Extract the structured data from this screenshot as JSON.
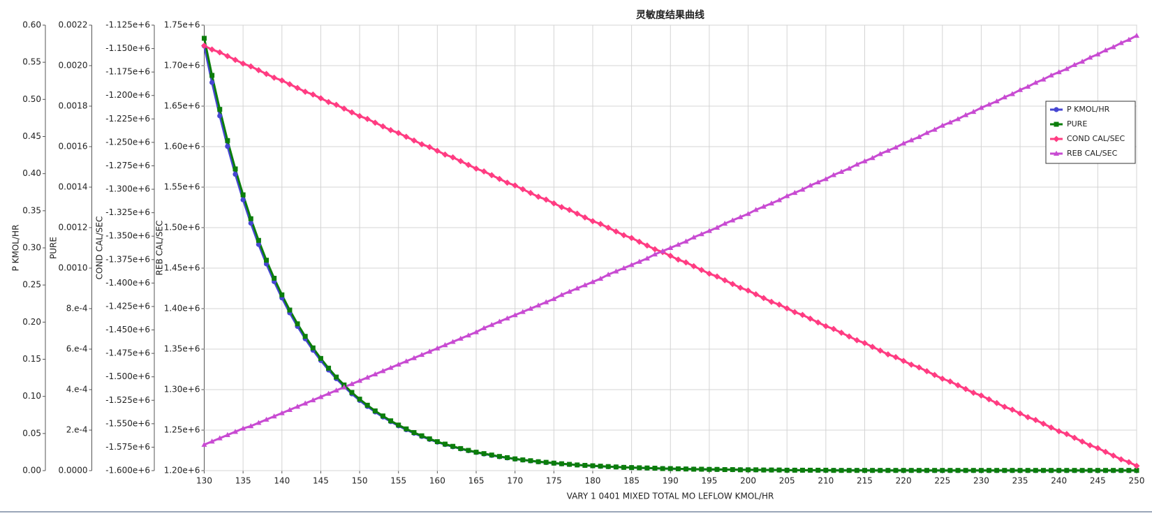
{
  "chart_data": {
    "type": "line",
    "title": "灵敏度结果曲线",
    "xlabel": "VARY   1 0401 MIXED TOTAL MO LEFLOW KMOL/HR",
    "ylabel": "P KMOL/HR",
    "y2label": "PURE",
    "y3label": "COND CAL/SEC",
    "y4label": "REB CAL/SEC",
    "grid": true,
    "legend": "upper right",
    "xlim": [
      130,
      250
    ],
    "xticks": [
      130,
      135,
      140,
      145,
      150,
      155,
      160,
      165,
      170,
      175,
      180,
      185,
      190,
      195,
      200,
      205,
      210,
      215,
      220,
      225,
      230,
      235,
      240,
      245,
      250
    ],
    "ylim": [
      0,
      0.6
    ],
    "yticks": [
      {
        "value": 0,
        "label": "0.00"
      },
      {
        "value": 0.05,
        "label": "0.05"
      },
      {
        "value": 0.1,
        "label": "0.10"
      },
      {
        "value": 0.15,
        "label": "0.15"
      },
      {
        "value": 0.2,
        "label": "0.20"
      },
      {
        "value": 0.25,
        "label": "0.25"
      },
      {
        "value": 0.3,
        "label": "0.30"
      },
      {
        "value": 0.35,
        "label": "0.35"
      },
      {
        "value": 0.4,
        "label": "0.40"
      },
      {
        "value": 0.45,
        "label": "0.45"
      },
      {
        "value": 0.5,
        "label": "0.50"
      },
      {
        "value": 0.55,
        "label": "0.55"
      },
      {
        "value": 0.6,
        "label": "0.60"
      }
    ],
    "y2lim": [
      0,
      0.0022
    ],
    "y2ticks": [
      {
        "value": 0,
        "label": "0.0000"
      },
      {
        "value": 0.0002,
        "label": "2.e-4"
      },
      {
        "value": 0.0004,
        "label": "4.e-4"
      },
      {
        "value": 0.0006,
        "label": "6.e-4"
      },
      {
        "value": 0.0008,
        "label": "8.e-4"
      },
      {
        "value": 0.001,
        "label": "0.0010"
      },
      {
        "value": 0.0012,
        "label": "0.0012"
      },
      {
        "value": 0.0014,
        "label": "0.0014"
      },
      {
        "value": 0.0016,
        "label": "0.0016"
      },
      {
        "value": 0.0018,
        "label": "0.0018"
      },
      {
        "value": 0.002,
        "label": "0.0020"
      },
      {
        "value": 0.0022,
        "label": "0.0022"
      }
    ],
    "y3lim": [
      -1600000,
      -1125000
    ],
    "y3ticks": [
      {
        "value": -1600000,
        "label": "-1.600e+6"
      },
      {
        "value": -1575000,
        "label": "-1.575e+6"
      },
      {
        "value": -1550000,
        "label": "-1.550e+6"
      },
      {
        "value": -1525000,
        "label": "-1.525e+6"
      },
      {
        "value": -1500000,
        "label": "-1.500e+6"
      },
      {
        "value": -1475000,
        "label": "-1.475e+6"
      },
      {
        "value": -1450000,
        "label": "-1.450e+6"
      },
      {
        "value": -1425000,
        "label": "-1.425e+6"
      },
      {
        "value": -1400000,
        "label": "-1.400e+6"
      },
      {
        "value": -1375000,
        "label": "-1.375e+6"
      },
      {
        "value": -1350000,
        "label": "-1.350e+6"
      },
      {
        "value": -1325000,
        "label": "-1.325e+6"
      },
      {
        "value": -1300000,
        "label": "-1.300e+6"
      },
      {
        "value": -1275000,
        "label": "-1.275e+6"
      },
      {
        "value": -1250000,
        "label": "-1.250e+6"
      },
      {
        "value": -1225000,
        "label": "-1.225e+6"
      },
      {
        "value": -1200000,
        "label": "-1.200e+6"
      },
      {
        "value": -1175000,
        "label": "-1.175e+6"
      },
      {
        "value": -1150000,
        "label": "-1.150e+6"
      },
      {
        "value": -1125000,
        "label": "-1.125e+6"
      }
    ],
    "y4lim": [
      1200000,
      1750000
    ],
    "y4ticks": [
      {
        "value": 1200000,
        "label": "1.20e+6"
      },
      {
        "value": 1250000,
        "label": "1.25e+6"
      },
      {
        "value": 1300000,
        "label": "1.30e+6"
      },
      {
        "value": 1350000,
        "label": "1.35e+6"
      },
      {
        "value": 1400000,
        "label": "1.40e+6"
      },
      {
        "value": 1450000,
        "label": "1.45e+6"
      },
      {
        "value": 1500000,
        "label": "1.50e+6"
      },
      {
        "value": 1550000,
        "label": "1.55e+6"
      },
      {
        "value": 1600000,
        "label": "1.60e+6"
      },
      {
        "value": 1650000,
        "label": "1.65e+6"
      },
      {
        "value": 1700000,
        "label": "1.70e+6"
      },
      {
        "value": 1750000,
        "label": "1.75e+6"
      }
    ],
    "x": [
      130,
      131,
      132,
      133,
      134,
      135,
      136,
      137,
      138,
      139,
      140,
      141,
      142,
      143,
      144,
      145,
      146,
      147,
      148,
      149,
      150,
      151,
      152,
      153,
      154,
      155,
      156,
      157,
      158,
      159,
      160,
      161,
      162,
      163,
      164,
      165,
      166,
      167,
      168,
      169,
      170,
      171,
      172,
      173,
      174,
      175,
      176,
      177,
      178,
      179,
      180,
      181,
      182,
      183,
      184,
      185,
      186,
      187,
      188,
      189,
      190,
      191,
      192,
      193,
      194,
      195,
      196,
      197,
      198,
      199,
      200,
      201,
      202,
      203,
      204,
      205,
      206,
      207,
      208,
      209,
      210,
      211,
      212,
      213,
      214,
      215,
      216,
      217,
      218,
      219,
      220,
      221,
      222,
      223,
      224,
      225,
      226,
      227,
      228,
      229,
      230,
      231,
      232,
      233,
      234,
      235,
      236,
      237,
      238,
      239,
      240,
      241,
      242,
      243,
      244,
      245,
      246,
      247,
      248,
      249,
      250
    ],
    "series": [
      {
        "name": "P KMOL/HR",
        "color": "#4646d2",
        "axis": "y",
        "marker": "circle",
        "values": [
          0.572,
          0.5228,
          0.4778,
          0.4367,
          0.3991,
          0.3647,
          0.3333,
          0.3046,
          0.2784,
          0.2545,
          0.2326,
          0.2125,
          0.1942,
          0.1775,
          0.1622,
          0.1483,
          0.1355,
          0.1238,
          0.1132,
          0.1034,
          0.0945,
          0.0864,
          0.079,
          0.0722,
          0.066,
          0.0603,
          0.0551,
          0.0503,
          0.046,
          0.042,
          0.0384,
          0.0351,
          0.0321,
          0.0293,
          0.0268,
          0.0245,
          0.0224,
          0.0205,
          0.0187,
          0.0171,
          0.0156,
          0.0143,
          0.0131,
          0.0119,
          0.0109,
          0.01,
          0.0091,
          0.0083,
          0.0076,
          0.007,
          0.0064,
          0.0058,
          0.0053,
          0.0049,
          0.0044,
          0.0041,
          0.0037,
          0.0034,
          0.0031,
          0.0028,
          0.0026,
          0.0024,
          0.0022,
          0.002,
          0.0018,
          0.0017,
          0.0015,
          0.0014,
          0.0013,
          0.0012,
          0.0011,
          0.0009,
          0.0008,
          0.0008,
          0.0007,
          0.0006,
          0.0006,
          0.0005,
          0.0005,
          0.0004,
          0.0004,
          0.0004,
          0.0003,
          0.0003,
          0.0003,
          0.0003,
          0.0002,
          0.0002,
          0.0002,
          0.0002,
          0.0002,
          0.0002,
          0.0001,
          0.0001,
          0.0001,
          0.0001,
          0.0001,
          0.0001,
          0.0001,
          0.0001,
          0.0001,
          0.0001,
          0.0001,
          0.0001,
          0.0001,
          0.0001,
          0.0001,
          0.0001,
          0.0001,
          0.0001,
          0.0001,
          0.0001,
          0.0001,
          0.0001,
          0.0001,
          0.0001,
          0.0001,
          0.0001,
          0.0001,
          0.0001,
          0.0001
        ]
      },
      {
        "name": "PURE",
        "color": "#0b7d0b",
        "axis": "y2",
        "marker": "square",
        "values": [
          0.002135,
          0.001952,
          0.001784,
          0.00163,
          0.00149,
          0.001362,
          0.001244,
          0.001137,
          0.001039,
          0.00095,
          0.000868,
          0.000793,
          0.000725,
          0.000663,
          0.000606,
          0.000554,
          0.000506,
          0.000462,
          0.000423,
          0.000386,
          0.000353,
          0.000323,
          0.000295,
          0.00027,
          0.000246,
          0.000225,
          0.000206,
          0.000188,
          0.000172,
          0.000157,
          0.000143,
          0.000131,
          0.00012,
          0.000109,
          0.0001,
          9.1e-05,
          8.4e-05,
          7.7e-05,
          7e-05,
          6.4e-05,
          5.8e-05,
          5.3e-05,
          4.9e-05,
          4.4e-05,
          4.1e-05,
          3.7e-05,
          3.4e-05,
          3.1e-05,
          2.8e-05,
          2.6e-05,
          2.4e-05,
          2.2e-05,
          2e-05,
          1.8e-05,
          1.6e-05,
          1.5e-05,
          1.4e-05,
          1.3e-05,
          1.2e-05,
          1e-05,
          1e-05,
          9e-06,
          8e-06,
          7e-06,
          7e-06,
          6e-06,
          6e-06,
          5e-06,
          5e-06,
          4e-06,
          4e-06,
          4e-06,
          3e-06,
          3e-06,
          3e-06,
          2e-06,
          2e-06,
          2e-06,
          2e-06,
          2e-06,
          2e-06,
          1e-06,
          1e-06,
          1e-06,
          1e-06,
          1e-06,
          1e-06,
          1e-06,
          1e-06,
          1e-06,
          1e-06,
          1e-06,
          1e-06,
          1e-06,
          1e-06,
          1e-06,
          1e-06,
          1e-06,
          1e-06,
          1e-06,
          1e-06,
          1e-06,
          1e-06,
          1e-06,
          1e-06,
          1e-06,
          1e-06,
          1e-06,
          1e-06,
          1e-06,
          1e-06,
          1e-06,
          1e-06,
          1e-06,
          1e-06,
          1e-06,
          1e-06,
          1e-06,
          1e-06,
          1e-06,
          1e-06
        ]
      },
      {
        "name": "COND CAL/SEC",
        "color": "#ff3c82",
        "axis": "y3",
        "marker": "diamond",
        "values": [
          -1147000,
          -1151000,
          -1154000,
          -1158000,
          -1162000,
          -1166000,
          -1169000,
          -1173000,
          -1177000,
          -1181000,
          -1184000,
          -1188000,
          -1192000,
          -1196000,
          -1199000,
          -1203000,
          -1207000,
          -1210000,
          -1214000,
          -1218000,
          -1222000,
          -1225000,
          -1229000,
          -1233000,
          -1237000,
          -1240000,
          -1244000,
          -1248000,
          -1252000,
          -1255000,
          -1259000,
          -1263000,
          -1266000,
          -1270000,
          -1274000,
          -1278000,
          -1281000,
          -1285000,
          -1289000,
          -1293000,
          -1296000,
          -1300000,
          -1304000,
          -1308000,
          -1311000,
          -1315000,
          -1319000,
          -1322000,
          -1326000,
          -1330000,
          -1334000,
          -1337000,
          -1341000,
          -1345000,
          -1349000,
          -1352000,
          -1356000,
          -1360000,
          -1364000,
          -1367000,
          -1371000,
          -1375000,
          -1378000,
          -1382000,
          -1386000,
          -1390000,
          -1393000,
          -1397000,
          -1401000,
          -1405000,
          -1408000,
          -1412000,
          -1416000,
          -1420000,
          -1423000,
          -1427000,
          -1431000,
          -1434000,
          -1438000,
          -1442000,
          -1446000,
          -1449000,
          -1453000,
          -1457000,
          -1461000,
          -1464000,
          -1468000,
          -1472000,
          -1476000,
          -1479000,
          -1483000,
          -1487000,
          -1490000,
          -1494000,
          -1498000,
          -1502000,
          -1505000,
          -1509000,
          -1513000,
          -1517000,
          -1520000,
          -1524000,
          -1528000,
          -1532000,
          -1535000,
          -1539000,
          -1543000,
          -1546000,
          -1550000,
          -1554000,
          -1558000,
          -1561000,
          -1565000,
          -1569000,
          -1573000,
          -1576000,
          -1580000,
          -1584000,
          -1588000,
          -1591000,
          -1595000
        ]
      },
      {
        "name": "REB CAL/SEC",
        "color": "#c84bd2",
        "axis": "y4",
        "marker": "triangle",
        "values": [
          1232000,
          1236000,
          1240000,
          1244000,
          1248000,
          1252000,
          1255000,
          1259000,
          1263000,
          1267000,
          1271000,
          1275000,
          1279000,
          1283000,
          1287000,
          1291000,
          1295000,
          1299000,
          1303000,
          1307000,
          1311000,
          1315000,
          1319000,
          1323000,
          1327000,
          1331000,
          1335000,
          1339000,
          1343000,
          1347000,
          1351000,
          1355000,
          1359000,
          1363000,
          1367000,
          1371000,
          1376000,
          1380000,
          1384000,
          1388000,
          1392000,
          1396000,
          1400000,
          1404000,
          1408000,
          1412000,
          1417000,
          1421000,
          1425000,
          1429000,
          1433000,
          1437000,
          1442000,
          1446000,
          1450000,
          1454000,
          1458000,
          1462000,
          1467000,
          1471000,
          1475000,
          1479000,
          1483000,
          1488000,
          1492000,
          1496000,
          1500000,
          1505000,
          1509000,
          1513000,
          1517000,
          1522000,
          1526000,
          1530000,
          1534000,
          1539000,
          1543000,
          1547000,
          1552000,
          1556000,
          1560000,
          1565000,
          1569000,
          1573000,
          1578000,
          1582000,
          1586000,
          1591000,
          1595000,
          1599000,
          1604000,
          1608000,
          1612000,
          1617000,
          1621000,
          1626000,
          1630000,
          1634000,
          1639000,
          1643000,
          1648000,
          1652000,
          1656000,
          1661000,
          1665000,
          1670000,
          1674000,
          1679000,
          1683000,
          1688000,
          1692000,
          1696000,
          1701000,
          1705000,
          1710000,
          1714000,
          1719000,
          1723000,
          1728000,
          1732000,
          1737000
        ]
      }
    ]
  }
}
